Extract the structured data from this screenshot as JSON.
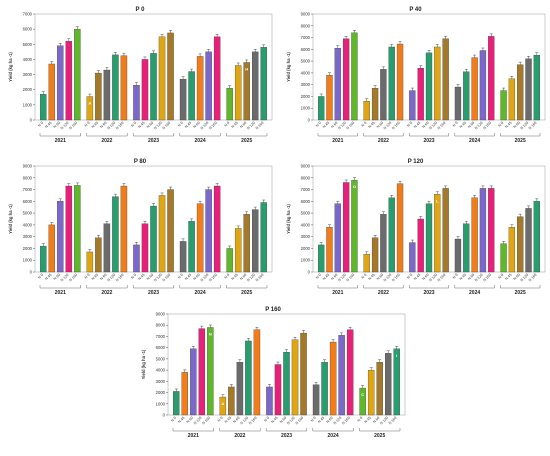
{
  "series_colors": [
    "#2a9d6f",
    "#f07d1a",
    "#7b68c8",
    "#e8207a",
    "#5fb82a",
    "#e0a512",
    "#a47a2a",
    "#6b6b6b"
  ],
  "chart_data": [
    {
      "type": "bar",
      "title": "P 0",
      "ylabel": "Yield (kg ha -1)",
      "ylim": [
        0,
        7000
      ],
      "yticks": [
        0,
        1000,
        2000,
        3000,
        4000,
        5000,
        6000,
        7000
      ],
      "years": [
        "2021",
        "2022",
        "2023",
        "2024",
        "2025"
      ],
      "groups": [
        {
          "year": "2021",
          "treatments": [
            "N 0",
            "N 45",
            "N 60",
            "N 120",
            "N 160"
          ],
          "colors": [
            0,
            1,
            2,
            3,
            4
          ],
          "values": [
            1700,
            3700,
            4900,
            5200,
            6000
          ],
          "letters": [
            "",
            "",
            "",
            "",
            ""
          ]
        },
        {
          "year": "2022",
          "treatments": [
            "N 0",
            "N 45",
            "N 60",
            "N 120",
            "N 160"
          ],
          "colors": [
            5,
            6,
            7,
            0,
            1
          ],
          "values": [
            1550,
            3100,
            3300,
            4300,
            4250
          ],
          "letters": [
            "A",
            "",
            "",
            "",
            ""
          ]
        },
        {
          "year": "2023",
          "treatments": [
            "N 0",
            "N 45",
            "N 60",
            "N 120",
            "N 160"
          ],
          "colors": [
            2,
            3,
            0,
            5,
            6
          ],
          "values": [
            2300,
            4000,
            4400,
            5500,
            5750
          ],
          "letters": [
            "",
            "",
            "",
            "",
            ""
          ]
        },
        {
          "year": "2024",
          "treatments": [
            "N 0",
            "N 45",
            "N 60",
            "N 120",
            "N 160"
          ],
          "colors": [
            7,
            0,
            1,
            2,
            3
          ],
          "values": [
            2700,
            3200,
            4200,
            4500,
            5500
          ],
          "letters": [
            "",
            "",
            "",
            "",
            ""
          ]
        },
        {
          "year": "2025",
          "treatments": [
            "N 0",
            "N 45",
            "N 60",
            "N 120",
            "N 160"
          ],
          "colors": [
            4,
            5,
            6,
            7,
            0
          ],
          "values": [
            2100,
            3600,
            3800,
            4500,
            4800
          ],
          "letters": [
            "",
            "",
            "H",
            "",
            ""
          ]
        }
      ]
    },
    {
      "type": "bar",
      "title": "P 40",
      "ylabel": "Yield (kg ha -1)",
      "ylim": [
        0,
        9000
      ],
      "yticks": [
        0,
        1000,
        2000,
        3000,
        4000,
        5000,
        6000,
        7000,
        8000,
        9000
      ],
      "years": [
        "2021",
        "2022",
        "2023",
        "2024",
        "2025"
      ],
      "groups": [
        {
          "year": "2021",
          "treatments": [
            "N 0",
            "N 45",
            "N 60",
            "N 120",
            "N 160"
          ],
          "colors": [
            0,
            1,
            2,
            3,
            4
          ],
          "values": [
            2000,
            3800,
            6100,
            6900,
            7400
          ],
          "letters": [
            "",
            "",
            "",
            "",
            ""
          ]
        },
        {
          "year": "2022",
          "treatments": [
            "N 0",
            "N 45",
            "N 60",
            "N 120",
            "N 160"
          ],
          "colors": [
            5,
            6,
            7,
            0,
            1
          ],
          "values": [
            1600,
            2700,
            4300,
            6200,
            6450
          ],
          "letters": [
            "",
            "",
            "",
            "",
            ""
          ]
        },
        {
          "year": "2023",
          "treatments": [
            "N 0",
            "N 45",
            "N 60",
            "N 120",
            "N 160"
          ],
          "colors": [
            2,
            3,
            0,
            5,
            6
          ],
          "values": [
            2500,
            4400,
            5700,
            6200,
            6900
          ],
          "letters": [
            "",
            "",
            "",
            "",
            ""
          ]
        },
        {
          "year": "2024",
          "treatments": [
            "N 0",
            "N 45",
            "N 60",
            "N 120",
            "N 160"
          ],
          "colors": [
            7,
            0,
            1,
            2,
            3
          ],
          "values": [
            2800,
            4100,
            5300,
            5900,
            7100
          ],
          "letters": [
            "",
            "",
            "",
            "",
            ""
          ]
        },
        {
          "year": "2025",
          "treatments": [
            "N 0",
            "N 45",
            "N 60",
            "N 120",
            "N 160"
          ],
          "colors": [
            4,
            5,
            6,
            7,
            0
          ],
          "values": [
            2500,
            3500,
            4700,
            5200,
            5500
          ],
          "letters": [
            "",
            "",
            "",
            "",
            ""
          ]
        }
      ]
    },
    {
      "type": "bar",
      "title": "P 80",
      "ylabel": "Yield (kg ha -1)",
      "ylim": [
        0,
        9000
      ],
      "yticks": [
        0,
        1000,
        2000,
        3000,
        4000,
        5000,
        6000,
        7000,
        8000,
        9000
      ],
      "years": [
        "2021",
        "2022",
        "2023",
        "2024",
        "2025"
      ],
      "groups": [
        {
          "year": "2021",
          "treatments": [
            "N 0",
            "N 45",
            "N 60",
            "N 120",
            "N 160"
          ],
          "colors": [
            0,
            1,
            2,
            3,
            4
          ],
          "values": [
            2200,
            4000,
            6000,
            7300,
            7350
          ],
          "letters": [
            "",
            "",
            "",
            "",
            ""
          ]
        },
        {
          "year": "2022",
          "treatments": [
            "N 0",
            "N 45",
            "N 60",
            "N 120",
            "N 160"
          ],
          "colors": [
            5,
            6,
            7,
            0,
            1
          ],
          "values": [
            1700,
            2900,
            4100,
            6400,
            7300
          ],
          "letters": [
            "",
            "",
            "",
            "",
            ""
          ]
        },
        {
          "year": "2023",
          "treatments": [
            "N 0",
            "N 45",
            "N 60",
            "N 120",
            "N 160"
          ],
          "colors": [
            2,
            3,
            0,
            5,
            6
          ],
          "values": [
            2300,
            4100,
            5600,
            6500,
            7000
          ],
          "letters": [
            "",
            "",
            "",
            "",
            ""
          ]
        },
        {
          "year": "2024",
          "treatments": [
            "N 0",
            "N 45",
            "N 60",
            "N 120",
            "N 160"
          ],
          "colors": [
            7,
            0,
            1,
            2,
            3
          ],
          "values": [
            2600,
            4300,
            5800,
            7000,
            7300
          ],
          "letters": [
            "",
            "",
            "",
            "",
            ""
          ]
        },
        {
          "year": "2025",
          "treatments": [
            "N 0",
            "N 45",
            "N 60",
            "N 120",
            "N 160"
          ],
          "colors": [
            4,
            5,
            6,
            7,
            0
          ],
          "values": [
            2000,
            3700,
            4900,
            5300,
            5900
          ],
          "letters": [
            "",
            "",
            "",
            "",
            ""
          ]
        }
      ]
    },
    {
      "type": "bar",
      "title": "P 120",
      "ylabel": "Yield (kg ha -1)",
      "ylim": [
        0,
        9000
      ],
      "yticks": [
        0,
        1000,
        2000,
        3000,
        4000,
        5000,
        6000,
        7000,
        8000,
        9000
      ],
      "years": [
        "2021",
        "2022",
        "2023",
        "2024",
        "2025"
      ],
      "groups": [
        {
          "year": "2021",
          "treatments": [
            "N 0",
            "N 45",
            "N 60",
            "N 120",
            "N 160"
          ],
          "colors": [
            0,
            1,
            2,
            3,
            4
          ],
          "values": [
            2300,
            3800,
            5800,
            7600,
            7800
          ],
          "letters": [
            "",
            "",
            "",
            "",
            "O"
          ]
        },
        {
          "year": "2022",
          "treatments": [
            "N 0",
            "N 45",
            "N 60",
            "N 120",
            "N 160"
          ],
          "colors": [
            5,
            6,
            7,
            0,
            1
          ],
          "values": [
            1500,
            2900,
            4900,
            6300,
            7500
          ],
          "letters": [
            "",
            "",
            "",
            "",
            ""
          ]
        },
        {
          "year": "2023",
          "treatments": [
            "N 0",
            "N 45",
            "N 60",
            "N 120",
            "N 160"
          ],
          "colors": [
            2,
            3,
            0,
            5,
            6
          ],
          "values": [
            2500,
            4500,
            5800,
            6600,
            7100
          ],
          "letters": [
            "",
            "",
            "",
            "L",
            ""
          ]
        },
        {
          "year": "2024",
          "treatments": [
            "N 0",
            "N 45",
            "N 60",
            "N 120",
            "N 160"
          ],
          "colors": [
            7,
            0,
            1,
            2,
            3
          ],
          "values": [
            2800,
            4100,
            6300,
            7100,
            7100
          ],
          "letters": [
            "",
            "",
            "",
            "",
            ""
          ]
        },
        {
          "year": "2025",
          "treatments": [
            "N 0",
            "N 45",
            "N 60",
            "N 120",
            "N 160"
          ],
          "colors": [
            4,
            5,
            6,
            7,
            0
          ],
          "values": [
            2400,
            3800,
            4700,
            5400,
            6000
          ],
          "letters": [
            "",
            "",
            "",
            "",
            ""
          ]
        }
      ]
    },
    {
      "type": "bar",
      "title": "P 160",
      "ylabel": "Yield (kg ha -1)",
      "ylim": [
        0,
        9000
      ],
      "yticks": [
        0,
        1000,
        2000,
        3000,
        4000,
        5000,
        6000,
        7000,
        8000,
        9000
      ],
      "years": [
        "2021",
        "2022",
        "2023",
        "2024",
        "2025"
      ],
      "groups": [
        {
          "year": "2021",
          "treatments": [
            "N 0",
            "N 45",
            "N 60",
            "N 120",
            "N 160"
          ],
          "colors": [
            0,
            1,
            2,
            3,
            4
          ],
          "values": [
            2100,
            3800,
            5900,
            7700,
            7800
          ],
          "letters": [
            "",
            "",
            "",
            "",
            "N"
          ]
        },
        {
          "year": "2022",
          "treatments": [
            "N 0",
            "N 45",
            "N 60",
            "N 120",
            "N 160"
          ],
          "colors": [
            5,
            6,
            7,
            0,
            1
          ],
          "values": [
            1600,
            2500,
            4700,
            6600,
            7600
          ],
          "letters": [
            "A",
            "",
            "",
            "",
            ""
          ]
        },
        {
          "year": "2023",
          "treatments": [
            "N 0",
            "N 45",
            "N 60",
            "N 120",
            "N 160"
          ],
          "colors": [
            2,
            3,
            0,
            5,
            6
          ],
          "values": [
            2500,
            4500,
            5600,
            6700,
            7300
          ],
          "letters": [
            "",
            "",
            "",
            "",
            ""
          ]
        },
        {
          "year": "2024",
          "treatments": [
            "N 0",
            "N 45",
            "N 60",
            "N 120",
            "N 160"
          ],
          "colors": [
            7,
            0,
            1,
            2,
            3
          ],
          "values": [
            2700,
            4700,
            6500,
            7100,
            7600
          ],
          "letters": [
            "",
            "",
            "",
            "",
            ""
          ]
        },
        {
          "year": "2025",
          "treatments": [
            "N 0",
            "N 45",
            "N 60",
            "N 120",
            "N 160"
          ],
          "colors": [
            4,
            5,
            6,
            7,
            0
          ],
          "values": [
            2400,
            4000,
            4700,
            5500,
            5900
          ],
          "letters": [
            "C",
            "",
            "",
            "",
            "I"
          ]
        }
      ]
    }
  ]
}
